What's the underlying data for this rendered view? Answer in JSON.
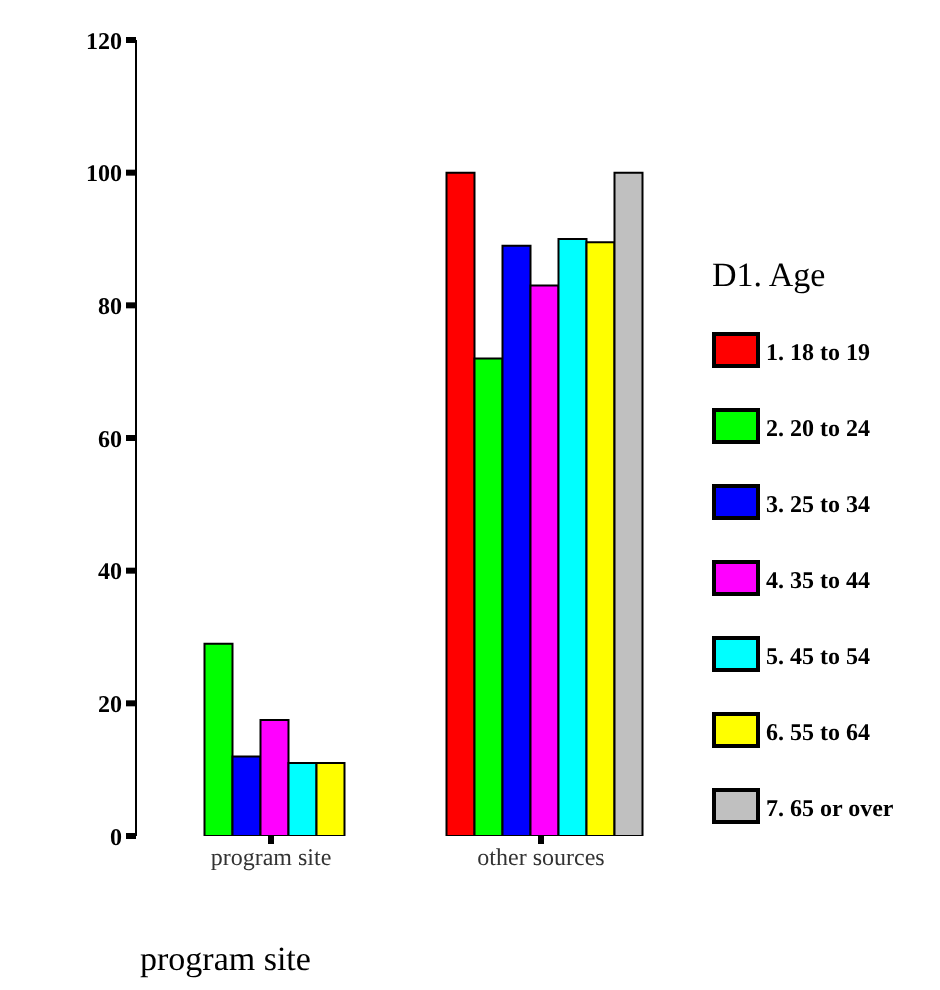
{
  "chart_data": {
    "type": "bar",
    "xlabel": "program site",
    "legend_title": "D1. Age",
    "categories": [
      "program site",
      "other sources"
    ],
    "series": [
      {
        "name": "1. 18 to 19",
        "color": "#ff0000",
        "values": [
          null,
          100
        ]
      },
      {
        "name": "2. 20 to 24",
        "color": "#00ff00",
        "values": [
          29,
          72
        ]
      },
      {
        "name": "3. 25 to 34",
        "color": "#0000ff",
        "values": [
          12,
          89
        ]
      },
      {
        "name": "4. 35 to 44",
        "color": "#ff00ff",
        "values": [
          17.5,
          83
        ]
      },
      {
        "name": "5. 45 to 54",
        "color": "#00ffff",
        "values": [
          11,
          90
        ]
      },
      {
        "name": "6. 55 to 64",
        "color": "#ffff00",
        "values": [
          11,
          89.5
        ]
      },
      {
        "name": "7. 65 or over",
        "color": "#c0c0c0",
        "values": [
          null,
          100
        ]
      }
    ],
    "ylim": [
      0,
      120
    ],
    "yticks": [
      0,
      20,
      40,
      60,
      80,
      100,
      120
    ],
    "grid": false,
    "legend": "right"
  }
}
